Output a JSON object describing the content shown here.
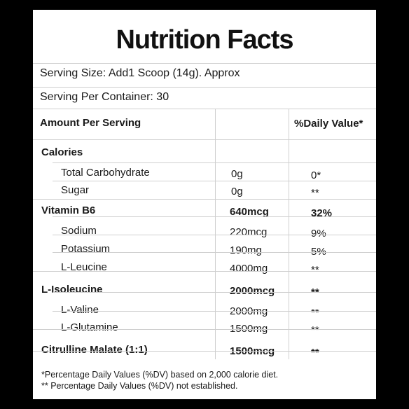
{
  "title": "Nutrition Facts",
  "serving_size": "Serving Size: Add1 Scoop (14g). Approx",
  "serving_per_container": "Serving Per Container: 30",
  "header": {
    "amount": "Amount Per Serving",
    "daily_value": "%Daily Value*"
  },
  "rows": [
    {
      "name": "Calories",
      "amount": "",
      "dv": "",
      "bold": true,
      "indent": false
    },
    {
      "name": "Total Carbohydrate",
      "amount": "0g",
      "dv": "0*",
      "bold": false,
      "indent": true
    },
    {
      "name": "Sugar",
      "amount": "0g",
      "dv": "**",
      "bold": false,
      "indent": true
    },
    {
      "name": "Vitamin B6",
      "amount": "640mcg",
      "dv": "32%",
      "bold": true,
      "indent": false
    },
    {
      "name": "Sodium",
      "amount": "220mcg",
      "dv": "9%",
      "bold": false,
      "indent": true
    },
    {
      "name": "Potassium",
      "amount": "190mg",
      "dv": "5%",
      "bold": false,
      "indent": true
    },
    {
      "name": "L-Leucine",
      "amount": "4000mg",
      "dv": "**",
      "bold": false,
      "indent": true
    },
    {
      "name": "L-Isoleucine",
      "amount": "2000mcg",
      "dv": "**",
      "bold": true,
      "indent": false
    },
    {
      "name": "L-Valine",
      "amount": "2000mg",
      "dv": "**",
      "bold": false,
      "indent": true
    },
    {
      "name": "L-Glutamine",
      "amount": "1500mg",
      "dv": "**",
      "bold": false,
      "indent": true
    },
    {
      "name": "Citrulline Malate (1:1)",
      "amount": "1500mcg",
      "dv": "**",
      "bold": true,
      "indent": false
    }
  ],
  "footnotes": [
    "*Percentage Daily Values (%DV) based on 2,000 calorie diet.",
    "** Percentage Daily Values (%DV) not established."
  ]
}
